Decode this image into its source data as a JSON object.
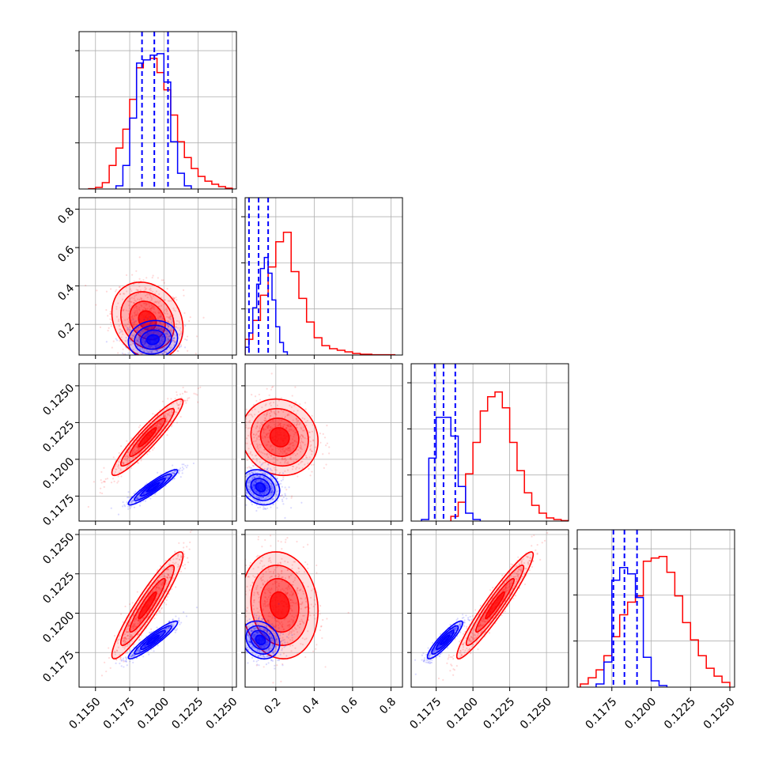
{
  "colors": {
    "red": "#ff0000",
    "blue": "#0000ff",
    "grid": "#b0b0b0"
  },
  "chart_data": {
    "type": "corner",
    "title": "",
    "parameters": [
      "",
      "",
      "",
      ""
    ],
    "series": [
      {
        "color": "red",
        "hist": [
          {
            "bins": [
              [
                0.1145,
                0.115,
                0.002
              ],
              [
                0.115,
                0.1155,
                0.01
              ],
              [
                0.1155,
                0.116,
                0.04
              ],
              [
                0.116,
                0.1165,
                0.15
              ],
              [
                0.1165,
                0.117,
                0.26
              ],
              [
                0.117,
                0.1175,
                0.38
              ],
              [
                0.1175,
                0.118,
                0.57
              ],
              [
                0.118,
                0.1185,
                0.77
              ],
              [
                0.1185,
                0.119,
                0.82
              ],
              [
                0.119,
                0.1195,
                0.83
              ],
              [
                0.1195,
                0.12,
                0.74
              ],
              [
                0.12,
                0.1205,
                0.63
              ],
              [
                0.1205,
                0.121,
                0.47
              ],
              [
                0.121,
                0.1215,
                0.3
              ],
              [
                0.1215,
                0.122,
                0.2
              ],
              [
                0.122,
                0.1225,
                0.13
              ],
              [
                0.1225,
                0.123,
                0.08
              ],
              [
                0.123,
                0.1235,
                0.05
              ],
              [
                0.1235,
                0.124,
                0.03
              ],
              [
                0.124,
                0.1245,
                0.015
              ],
              [
                0.1245,
                0.125,
                0.005
              ]
            ]
          },
          {
            "bins": [
              [
                0.04,
                0.08,
                0.1
              ],
              [
                0.08,
                0.12,
                0.22
              ],
              [
                0.12,
                0.16,
                0.38
              ],
              [
                0.16,
                0.2,
                0.56
              ],
              [
                0.2,
                0.24,
                0.72
              ],
              [
                0.24,
                0.28,
                0.78
              ],
              [
                0.28,
                0.32,
                0.53
              ],
              [
                0.32,
                0.36,
                0.36
              ],
              [
                0.36,
                0.4,
                0.21
              ],
              [
                0.4,
                0.44,
                0.11
              ],
              [
                0.44,
                0.48,
                0.06
              ],
              [
                0.48,
                0.52,
                0.04
              ],
              [
                0.52,
                0.56,
                0.03
              ],
              [
                0.56,
                0.6,
                0.02
              ],
              [
                0.6,
                0.64,
                0.01
              ],
              [
                0.64,
                0.7,
                0.005
              ],
              [
                0.7,
                0.82,
                0.002
              ]
            ]
          },
          {
            "bins": [
              [
                0.1185,
                0.119,
                0.03
              ],
              [
                0.119,
                0.1195,
                0.12
              ],
              [
                0.1195,
                0.12,
                0.3
              ],
              [
                0.12,
                0.1205,
                0.5
              ],
              [
                0.1205,
                0.121,
                0.7
              ],
              [
                0.121,
                0.1215,
                0.79
              ],
              [
                0.1215,
                0.122,
                0.82
              ],
              [
                0.122,
                0.1225,
                0.72
              ],
              [
                0.1225,
                0.123,
                0.5
              ],
              [
                0.123,
                0.1235,
                0.32
              ],
              [
                0.1235,
                0.124,
                0.18
              ],
              [
                0.124,
                0.1245,
                0.1
              ],
              [
                0.1245,
                0.125,
                0.05
              ],
              [
                0.125,
                0.1255,
                0.02
              ],
              [
                0.1255,
                0.126,
                0.01
              ],
              [
                0.126,
                0.127,
                0.003
              ]
            ]
          },
          {
            "bins": [
              [
                0.1155,
                0.116,
                0.02
              ],
              [
                0.116,
                0.1165,
                0.06
              ],
              [
                0.1165,
                0.117,
                0.11
              ],
              [
                0.117,
                0.1175,
                0.2
              ],
              [
                0.1175,
                0.118,
                0.32
              ],
              [
                0.118,
                0.1185,
                0.46
              ],
              [
                0.1185,
                0.119,
                0.54
              ],
              [
                0.119,
                0.1195,
                0.58
              ],
              [
                0.1195,
                0.12,
                0.8
              ],
              [
                0.12,
                0.1205,
                0.82
              ],
              [
                0.1205,
                0.121,
                0.83
              ],
              [
                0.121,
                0.1215,
                0.73
              ],
              [
                0.1215,
                0.122,
                0.58
              ],
              [
                0.122,
                0.1225,
                0.41
              ],
              [
                0.1225,
                0.123,
                0.3
              ],
              [
                0.123,
                0.1235,
                0.2
              ],
              [
                0.1235,
                0.124,
                0.12
              ],
              [
                0.124,
                0.1245,
                0.07
              ],
              [
                0.1245,
                0.125,
                0.03
              ]
            ]
          }
        ],
        "centers": [
          0.1188,
          0.22,
          0.1215,
          0.1205
        ],
        "sigmas": [
          0.0013,
          0.1,
          0.0013,
          0.0017
        ],
        "corr": {
          "1_0": -0.2,
          "2_0": 0.93,
          "3_0": 0.93,
          "2_1": -0.1,
          "3_1": -0.1,
          "3_2": 0.95
        }
      },
      {
        "color": "blue",
        "hist": [
          {
            "bins": [
              [
                0.1165,
                0.117,
                0.02
              ],
              [
                0.117,
                0.1175,
                0.15
              ],
              [
                0.1175,
                0.118,
                0.45
              ],
              [
                0.118,
                0.1185,
                0.8
              ],
              [
                0.1185,
                0.119,
                0.82
              ],
              [
                0.119,
                0.1195,
                0.85
              ],
              [
                0.1195,
                0.12,
                0.86
              ],
              [
                0.12,
                0.1205,
                0.68
              ],
              [
                0.1205,
                0.121,
                0.3
              ],
              [
                0.121,
                0.1215,
                0.1
              ],
              [
                0.1215,
                0.122,
                0.02
              ]
            ]
          },
          {
            "bins": [
              [
                0.04,
                0.06,
                0.05
              ],
              [
                0.06,
                0.08,
                0.14
              ],
              [
                0.08,
                0.1,
                0.3
              ],
              [
                0.1,
                0.12,
                0.45
              ],
              [
                0.12,
                0.14,
                0.55
              ],
              [
                0.14,
                0.16,
                0.62
              ],
              [
                0.16,
                0.18,
                0.52
              ],
              [
                0.18,
                0.2,
                0.35
              ],
              [
                0.2,
                0.22,
                0.18
              ],
              [
                0.22,
                0.24,
                0.08
              ],
              [
                0.24,
                0.26,
                0.02
              ]
            ]
          },
          {
            "bins": [
              [
                0.1165,
                0.117,
                0.01
              ],
              [
                0.117,
                0.1175,
                0.4
              ],
              [
                0.1175,
                0.118,
                0.66
              ],
              [
                0.118,
                0.1185,
                0.66
              ],
              [
                0.1185,
                0.119,
                0.54
              ],
              [
                0.119,
                0.1195,
                0.22
              ],
              [
                0.1195,
                0.12,
                0.05
              ],
              [
                0.12,
                0.1205,
                0.01
              ]
            ]
          },
          {
            "bins": [
              [
                0.1165,
                0.117,
                0.02
              ],
              [
                0.117,
                0.1175,
                0.16
              ],
              [
                0.1175,
                0.118,
                0.68
              ],
              [
                0.118,
                0.1185,
                0.76
              ],
              [
                0.1185,
                0.119,
                0.72
              ],
              [
                0.119,
                0.1195,
                0.57
              ],
              [
                0.1195,
                0.12,
                0.19
              ],
              [
                0.12,
                0.1205,
                0.04
              ],
              [
                0.1205,
                0.121,
                0.01
              ]
            ]
          }
        ],
        "centers": [
          0.1192,
          0.12,
          0.1181,
          0.1183
        ],
        "sigmas": [
          0.0009,
          0.05,
          0.0006,
          0.0006
        ],
        "corr": {
          "1_0": 0.1,
          "2_0": 0.93,
          "3_0": 0.93,
          "2_1": -0.2,
          "3_1": -0.2,
          "3_2": 0.9
        }
      }
    ],
    "quantiles": [
      [
        0.1184,
        0.1193,
        0.1203
      ],
      [
        0.06,
        0.11,
        0.16
      ],
      [
        0.1174,
        0.118,
        0.1188
      ],
      [
        0.1176,
        0.1183,
        0.1191
      ]
    ],
    "quantile_style": "dashed",
    "quantile_color": "blue",
    "ranges": [
      [
        0.1138,
        0.1253
      ],
      [
        0.04,
        0.86
      ],
      [
        0.1158,
        0.1265
      ],
      [
        0.1153,
        0.1253
      ]
    ],
    "ticks": [
      [
        0.115,
        0.1175,
        0.12,
        0.1225,
        0.125
      ],
      [
        0.2,
        0.4,
        0.6,
        0.8
      ],
      [
        0.1175,
        0.12,
        0.1225,
        0.125
      ],
      [
        0.1175,
        0.12,
        0.1225,
        0.125
      ]
    ],
    "tick_labels": [
      [
        "0.1150",
        "0.1175",
        "0.1200",
        "0.1225",
        "0.1250"
      ],
      [
        "0.2",
        "0.4",
        "0.6",
        "0.8"
      ],
      [
        "0.1175",
        "0.1200",
        "0.1225",
        "0.1250"
      ],
      [
        "0.1175",
        "0.1200",
        "0.1225",
        "0.1250"
      ]
    ],
    "grid": true
  }
}
